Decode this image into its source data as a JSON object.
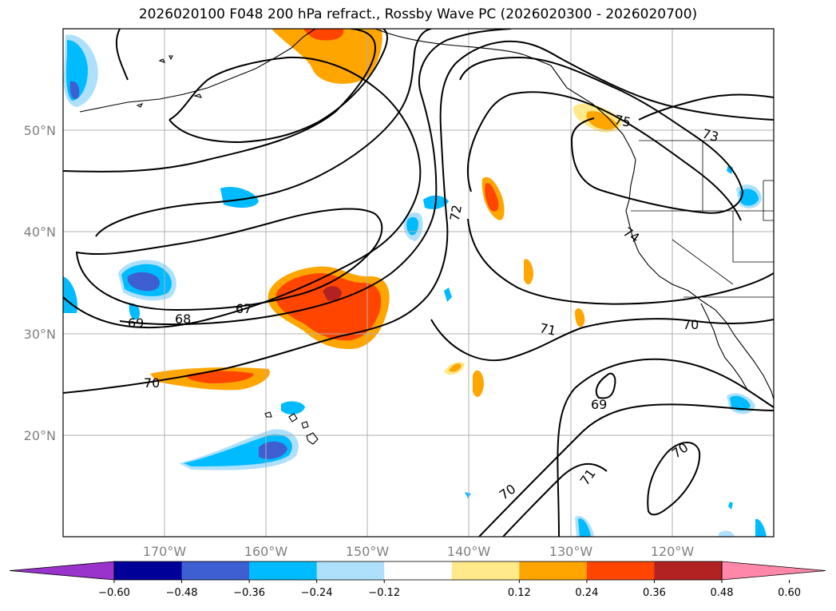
{
  "title": "2026020100 F048 200 hPa refract., Rossby Wave PC (2026020300 - 2026020700)",
  "map": {
    "projection": "cylindrical",
    "lon_range": [
      -180,
      -110
    ],
    "lat_range": [
      10,
      60
    ],
    "lat_labels": [
      "50°N",
      "40°N",
      "30°N",
      "20°N"
    ],
    "lon_labels": [
      "170°W",
      "160°W",
      "150°W",
      "140°W",
      "130°W",
      "120°W"
    ],
    "gridlines": true
  },
  "contour_labels": [
    "67",
    "68",
    "69",
    "70",
    "72",
    "74",
    "75",
    "73",
    "71",
    "70",
    "69",
    "70",
    "71",
    "70"
  ],
  "colorbar": {
    "extend": "both",
    "tick_labels": [
      "−0.60",
      "−0.48",
      "−0.36",
      "−0.24",
      "−0.12",
      "0.12",
      "0.24",
      "0.36",
      "0.48",
      "0.60"
    ],
    "colors": [
      "#9933cc",
      "#000099",
      "#3d5fd1",
      "#00bbff",
      "#aee0fb",
      "#ffffff",
      "#ffe98a",
      "#ffa500",
      "#ff4500",
      "#b22222",
      "#ff88aa"
    ]
  }
}
